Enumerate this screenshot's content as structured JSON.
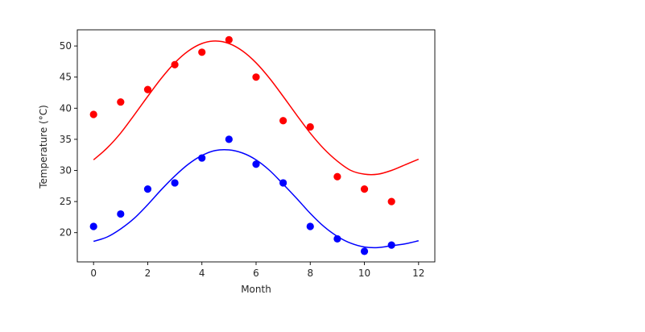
{
  "chart_data": {
    "type": "scatter",
    "title": "",
    "xlabel": "Month",
    "ylabel": "Temperature (°C)",
    "xlim": [
      -0.6,
      12.6
    ],
    "ylim": [
      15.3,
      52.6
    ],
    "xticks": [
      0,
      2,
      4,
      6,
      8,
      10,
      12
    ],
    "yticks": [
      20,
      25,
      30,
      35,
      40,
      45,
      50
    ],
    "grid": false,
    "legend": "none",
    "series": [
      {
        "color": "#ff0000",
        "points": {
          "x": [
            0,
            1,
            2,
            3,
            4,
            5,
            6,
            7,
            8,
            9,
            10,
            11
          ],
          "y": [
            39,
            41,
            43,
            47,
            49,
            51,
            45,
            38,
            37,
            29,
            27,
            25
          ]
        },
        "fit_curve": {
          "x": [
            0,
            0.5,
            1,
            1.5,
            2,
            2.5,
            3,
            3.5,
            4,
            4.5,
            5,
            5.5,
            6,
            6.5,
            7,
            7.5,
            8,
            8.5,
            9,
            9.5,
            10,
            10.5,
            11,
            11.5,
            12
          ],
          "y": [
            31.7,
            33.6,
            36.0,
            38.9,
            41.9,
            44.8,
            47.3,
            49.2,
            50.4,
            50.8,
            50.4,
            49.2,
            47.3,
            44.8,
            41.9,
            38.9,
            36.0,
            33.5,
            31.5,
            30.0,
            29.4,
            29.4,
            30.0,
            30.9,
            31.8
          ]
        }
      },
      {
        "color": "#0000ff",
        "points": {
          "x": [
            0,
            1,
            2,
            3,
            4,
            5,
            6,
            7,
            8,
            9,
            10,
            11
          ],
          "y": [
            21,
            23,
            27,
            28,
            32,
            35,
            31,
            28,
            21,
            19,
            17,
            18
          ]
        },
        "fit_curve": {
          "x": [
            0,
            0.5,
            1,
            1.5,
            2,
            2.5,
            3,
            3.5,
            4,
            4.5,
            5,
            5.5,
            6,
            6.5,
            7,
            7.5,
            8,
            8.5,
            9,
            9.5,
            10,
            10.5,
            11,
            11.5,
            12
          ],
          "y": [
            18.6,
            19.3,
            20.6,
            22.3,
            24.5,
            26.9,
            29.1,
            31.0,
            32.4,
            33.2,
            33.3,
            32.8,
            31.7,
            30.0,
            27.8,
            25.5,
            23.1,
            21.0,
            19.4,
            18.3,
            17.7,
            17.6,
            17.9,
            18.2,
            18.7
          ]
        }
      }
    ]
  }
}
